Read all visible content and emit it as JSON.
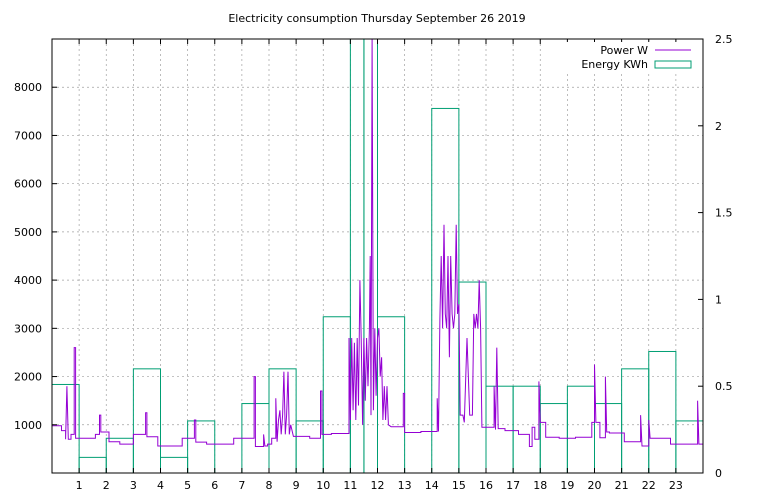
{
  "chart_data": {
    "type": "line",
    "title": "Electricity consumption Thursday September 26 2019",
    "xlabel": "",
    "x_ticks": [
      1,
      2,
      3,
      4,
      5,
      6,
      7,
      8,
      9,
      10,
      11,
      12,
      13,
      14,
      15,
      16,
      17,
      18,
      19,
      20,
      21,
      22,
      23
    ],
    "xlim": [
      0,
      24
    ],
    "y1lim": [
      0,
      9000
    ],
    "y1_ticks": [
      1000,
      2000,
      3000,
      4000,
      5000,
      6000,
      7000,
      8000
    ],
    "y2lim": [
      0,
      2.5
    ],
    "y2_ticks": [
      "0",
      "0.5",
      "1",
      "1.5",
      "2",
      "2.5"
    ],
    "grid": true,
    "legend_position": "top-right",
    "series": [
      {
        "name": "Power W",
        "axis": "left",
        "style": "line",
        "color": "#9400d3",
        "points": [
          [
            0,
            980
          ],
          [
            0.35,
            980
          ],
          [
            0.35,
            880
          ],
          [
            0.5,
            880
          ],
          [
            0.5,
            700
          ],
          [
            0.55,
            1800
          ],
          [
            0.6,
            700
          ],
          [
            0.7,
            700
          ],
          [
            0.7,
            800
          ],
          [
            0.82,
            800
          ],
          [
            0.82,
            2600
          ],
          [
            0.87,
            2600
          ],
          [
            0.87,
            720
          ],
          [
            1.6,
            720
          ],
          [
            1.6,
            800
          ],
          [
            1.75,
            800
          ],
          [
            1.75,
            1200
          ],
          [
            1.8,
            1200
          ],
          [
            1.8,
            850
          ],
          [
            2.1,
            850
          ],
          [
            2.1,
            650
          ],
          [
            2.5,
            650
          ],
          [
            2.5,
            600
          ],
          [
            3.0,
            600
          ],
          [
            3.0,
            800
          ],
          [
            3.45,
            800
          ],
          [
            3.45,
            1250
          ],
          [
            3.5,
            1250
          ],
          [
            3.5,
            750
          ],
          [
            3.9,
            750
          ],
          [
            3.9,
            560
          ],
          [
            4.8,
            560
          ],
          [
            4.8,
            720
          ],
          [
            5.25,
            720
          ],
          [
            5.25,
            1100
          ],
          [
            5.3,
            1100
          ],
          [
            5.3,
            640
          ],
          [
            5.7,
            640
          ],
          [
            5.7,
            600
          ],
          [
            6.7,
            600
          ],
          [
            6.7,
            720
          ],
          [
            7.45,
            720
          ],
          [
            7.45,
            2000
          ],
          [
            7.5,
            2000
          ],
          [
            7.5,
            550
          ],
          [
            7.8,
            550
          ],
          [
            7.8,
            800
          ],
          [
            7.85,
            560
          ],
          [
            7.95,
            560
          ],
          [
            7.95,
            600
          ],
          [
            8.1,
            600
          ],
          [
            8.1,
            720
          ],
          [
            8.25,
            720
          ],
          [
            8.25,
            1550
          ],
          [
            8.3,
            650
          ],
          [
            8.35,
            1100
          ],
          [
            8.4,
            1300
          ],
          [
            8.45,
            800
          ],
          [
            8.5,
            1200
          ],
          [
            8.55,
            2100
          ],
          [
            8.6,
            800
          ],
          [
            8.65,
            1200
          ],
          [
            8.7,
            2100
          ],
          [
            8.75,
            800
          ],
          [
            8.8,
            1000
          ],
          [
            8.9,
            760
          ],
          [
            9.5,
            760
          ],
          [
            9.5,
            720
          ],
          [
            9.9,
            720
          ],
          [
            9.9,
            1700
          ],
          [
            9.95,
            1700
          ],
          [
            9.95,
            800
          ],
          [
            10.3,
            800
          ],
          [
            10.3,
            820
          ],
          [
            10.95,
            820
          ],
          [
            10.95,
            2800
          ],
          [
            11.0,
            1100
          ],
          [
            11.05,
            2800
          ],
          [
            11.1,
            1300
          ],
          [
            11.15,
            2700
          ],
          [
            11.2,
            1100
          ],
          [
            11.25,
            2800
          ],
          [
            11.3,
            1400
          ],
          [
            11.35,
            4000
          ],
          [
            11.4,
            2800
          ],
          [
            11.45,
            1000
          ],
          [
            11.5,
            2800
          ],
          [
            11.55,
            1500
          ],
          [
            11.6,
            2800
          ],
          [
            11.65,
            1800
          ],
          [
            11.7,
            3000
          ],
          [
            11.73,
            4500
          ],
          [
            11.76,
            1200
          ],
          [
            11.8,
            9000
          ],
          [
            11.85,
            1300
          ],
          [
            11.9,
            3000
          ],
          [
            11.95,
            1600
          ],
          [
            12.0,
            2800
          ],
          [
            12.05,
            3000
          ],
          [
            12.1,
            2000
          ],
          [
            12.15,
            2400
          ],
          [
            12.2,
            1100
          ],
          [
            12.25,
            1800
          ],
          [
            12.3,
            1100
          ],
          [
            12.35,
            1800
          ],
          [
            12.4,
            1000
          ],
          [
            12.5,
            960
          ],
          [
            12.95,
            960
          ],
          [
            12.95,
            1650
          ],
          [
            13.0,
            1650
          ],
          [
            13.0,
            840
          ],
          [
            13.6,
            840
          ],
          [
            13.6,
            860
          ],
          [
            14.2,
            860
          ],
          [
            14.2,
            1550
          ],
          [
            14.25,
            860
          ],
          [
            14.3,
            3200
          ],
          [
            14.35,
            4500
          ],
          [
            14.4,
            3000
          ],
          [
            14.45,
            5150
          ],
          [
            14.5,
            3300
          ],
          [
            14.55,
            3000
          ],
          [
            14.6,
            4500
          ],
          [
            14.65,
            2400
          ],
          [
            14.7,
            4500
          ],
          [
            14.75,
            3300
          ],
          [
            14.8,
            3000
          ],
          [
            14.85,
            3300
          ],
          [
            14.9,
            5150
          ],
          [
            14.95,
            3300
          ],
          [
            15.0,
            3500
          ],
          [
            15.05,
            1200
          ],
          [
            15.15,
            1200
          ],
          [
            15.2,
            1050
          ],
          [
            15.3,
            2800
          ],
          [
            15.4,
            1200
          ],
          [
            15.5,
            1200
          ],
          [
            15.55,
            3300
          ],
          [
            15.6,
            3000
          ],
          [
            15.65,
            3300
          ],
          [
            15.7,
            3000
          ],
          [
            15.75,
            4000
          ],
          [
            15.8,
            3000
          ],
          [
            15.85,
            950
          ],
          [
            16.3,
            950
          ],
          [
            16.3,
            1800
          ],
          [
            16.35,
            900
          ],
          [
            16.4,
            2600
          ],
          [
            16.45,
            920
          ],
          [
            16.7,
            920
          ],
          [
            16.7,
            880
          ],
          [
            17.2,
            880
          ],
          [
            17.2,
            800
          ],
          [
            17.6,
            800
          ],
          [
            17.6,
            550
          ],
          [
            17.7,
            550
          ],
          [
            17.7,
            950
          ],
          [
            17.8,
            950
          ],
          [
            17.8,
            700
          ],
          [
            17.95,
            700
          ],
          [
            17.95,
            1900
          ],
          [
            18.0,
            1050
          ],
          [
            18.2,
            1050
          ],
          [
            18.2,
            740
          ],
          [
            18.7,
            740
          ],
          [
            18.7,
            720
          ],
          [
            19.3,
            720
          ],
          [
            19.3,
            740
          ],
          [
            19.9,
            740
          ],
          [
            19.9,
            1050
          ],
          [
            20.0,
            1050
          ],
          [
            20.0,
            2250
          ],
          [
            20.05,
            1050
          ],
          [
            20.2,
            1050
          ],
          [
            20.2,
            730
          ],
          [
            20.4,
            730
          ],
          [
            20.4,
            2000
          ],
          [
            20.45,
            850
          ],
          [
            20.55,
            850
          ],
          [
            20.55,
            830
          ],
          [
            21.1,
            830
          ],
          [
            21.1,
            650
          ],
          [
            21.7,
            650
          ],
          [
            21.7,
            1200
          ],
          [
            21.75,
            560
          ],
          [
            22.0,
            560
          ],
          [
            22.0,
            1100
          ],
          [
            22.05,
            720
          ],
          [
            22.8,
            720
          ],
          [
            22.8,
            600
          ],
          [
            23.8,
            600
          ],
          [
            23.8,
            1500
          ],
          [
            23.85,
            600
          ],
          [
            24,
            600
          ]
        ]
      },
      {
        "name": "Energy KWh",
        "axis": "right",
        "style": "steps",
        "color": "#009e73",
        "bars": [
          [
            0,
            0.51
          ],
          [
            1,
            0.09
          ],
          [
            2,
            0.2
          ],
          [
            3,
            0.6
          ],
          [
            4,
            0.09
          ],
          [
            5,
            0.3
          ],
          [
            6,
            0
          ],
          [
            7,
            0.4
          ],
          [
            8,
            0.6
          ],
          [
            9,
            0.3
          ],
          [
            10,
            0.9
          ],
          [
            11,
            2.5
          ],
          [
            11.5,
            2.5
          ],
          [
            12,
            0.9
          ],
          [
            13,
            0
          ],
          [
            14,
            2.1
          ],
          [
            15,
            1.1
          ],
          [
            16,
            0.5
          ],
          [
            17,
            0.5
          ],
          [
            18,
            0.4
          ],
          [
            19,
            0.5
          ],
          [
            20,
            0.4
          ],
          [
            21,
            0.6
          ],
          [
            22,
            0.7
          ],
          [
            23,
            0.3
          ]
        ]
      }
    ]
  }
}
